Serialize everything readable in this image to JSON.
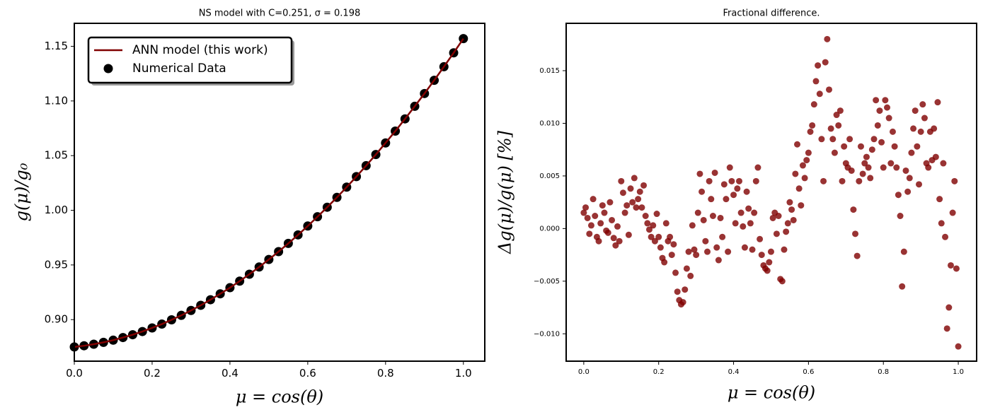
{
  "chart_data": [
    {
      "type": "line",
      "title": "NS model with C=0.251, σ = 0.198",
      "xlabel": "μ = cos(θ)",
      "ylabel": "g(μ)/g₀",
      "x": [
        0,
        0.025,
        0.05,
        0.075,
        0.1,
        0.125,
        0.15,
        0.175,
        0.2,
        0.225,
        0.25,
        0.275,
        0.3,
        0.325,
        0.35,
        0.375,
        0.4,
        0.425,
        0.45,
        0.475,
        0.5,
        0.525,
        0.55,
        0.575,
        0.6,
        0.625,
        0.65,
        0.675,
        0.7,
        0.725,
        0.75,
        0.775,
        0.8,
        0.825,
        0.85,
        0.875,
        0.9,
        0.925,
        0.95,
        0.975,
        1.0
      ],
      "series": [
        {
          "name": "ANN model (this work)",
          "color": "#800000",
          "style": "line",
          "values": [
            0.875,
            0.8761,
            0.8775,
            0.8792,
            0.8812,
            0.8836,
            0.8862,
            0.8891,
            0.8924,
            0.8959,
            0.8998,
            0.9039,
            0.9084,
            0.9131,
            0.9182,
            0.9236,
            0.9292,
            0.9352,
            0.9415,
            0.9481,
            0.955,
            0.9622,
            0.9697,
            0.9775,
            0.9856,
            0.9941,
            1.0028,
            1.0118,
            1.0212,
            1.0308,
            1.0408,
            1.051,
            1.0616,
            1.0724,
            1.0836,
            1.0951,
            1.1068,
            1.1189,
            1.1313,
            1.144,
            1.157
          ]
        },
        {
          "name": "Numerical Data",
          "color": "#000000",
          "style": "scatter",
          "values": [
            0.875,
            0.8761,
            0.8775,
            0.8792,
            0.8812,
            0.8836,
            0.8862,
            0.8891,
            0.8924,
            0.8959,
            0.8998,
            0.9039,
            0.9084,
            0.9131,
            0.9182,
            0.9236,
            0.9292,
            0.9352,
            0.9415,
            0.9481,
            0.955,
            0.9622,
            0.9697,
            0.9775,
            0.9856,
            0.9941,
            1.0028,
            1.0118,
            1.0212,
            1.0308,
            1.0408,
            1.051,
            1.0616,
            1.0724,
            1.0836,
            1.0951,
            1.1068,
            1.1189,
            1.1313,
            1.144,
            1.157
          ]
        }
      ],
      "xlim": [
        0,
        1.055
      ],
      "ylim": [
        0.862,
        1.171
      ],
      "xticks": [
        {
          "value": 0,
          "label": "0.0"
        },
        0.2,
        0.4,
        0.6,
        0.8,
        {
          "value": 1,
          "label": "1.0"
        }
      ],
      "yticks": [
        {
          "value": 0.9,
          "label": "0.90"
        },
        0.95,
        {
          "value": 1,
          "label": "1.00"
        },
        1.05,
        {
          "value": 1.1,
          "label": "1.10"
        },
        1.15
      ],
      "legend": "upper left"
    },
    {
      "type": "scatter",
      "title": "Fractional difference.",
      "xlabel": "μ = cos(θ)",
      "ylabel": "Δg(μ)/g(μ)  [%]",
      "x": [
        0,
        0.005,
        0.01,
        0.015,
        0.02,
        0.025,
        0.03,
        0.035,
        0.04,
        0.045,
        0.05,
        0.055,
        0.06,
        0.065,
        0.07,
        0.075,
        0.08,
        0.085,
        0.09,
        0.095,
        0.1,
        0.105,
        0.11,
        0.115,
        0.12,
        0.125,
        0.13,
        0.135,
        0.14,
        0.145,
        0.15,
        0.155,
        0.16,
        0.165,
        0.17,
        0.175,
        0.18,
        0.185,
        0.19,
        0.195,
        0.2,
        0.205,
        0.21,
        0.215,
        0.22,
        0.225,
        0.23,
        0.235,
        0.24,
        0.245,
        0.25,
        0.255,
        0.26,
        0.265,
        0.27,
        0.275,
        0.28,
        0.285,
        0.29,
        0.295,
        0.3,
        0.305,
        0.31,
        0.315,
        0.32,
        0.325,
        0.33,
        0.335,
        0.34,
        0.345,
        0.35,
        0.355,
        0.36,
        0.365,
        0.37,
        0.375,
        0.38,
        0.385,
        0.39,
        0.395,
        0.4,
        0.405,
        0.41,
        0.415,
        0.42,
        0.425,
        0.43,
        0.435,
        0.44,
        0.445,
        0.45,
        0.455,
        0.46,
        0.465,
        0.47,
        0.475,
        0.48,
        0.485,
        0.49,
        0.495,
        0.5,
        0.505,
        0.51,
        0.515,
        0.52,
        0.525,
        0.53,
        0.535,
        0.54,
        0.545,
        0.55,
        0.555,
        0.56,
        0.565,
        0.57,
        0.575,
        0.58,
        0.585,
        0.59,
        0.595,
        0.6,
        0.605,
        0.61,
        0.615,
        0.62,
        0.625,
        0.63,
        0.635,
        0.64,
        0.645,
        0.65,
        0.655,
        0.66,
        0.665,
        0.67,
        0.675,
        0.68,
        0.685,
        0.69,
        0.695,
        0.7,
        0.705,
        0.71,
        0.715,
        0.72,
        0.725,
        0.73,
        0.735,
        0.74,
        0.745,
        0.75,
        0.755,
        0.76,
        0.765,
        0.77,
        0.775,
        0.78,
        0.785,
        0.79,
        0.795,
        0.8,
        0.805,
        0.81,
        0.815,
        0.82,
        0.825,
        0.83,
        0.835,
        0.84,
        0.845,
        0.85,
        0.855,
        0.86,
        0.865,
        0.87,
        0.875,
        0.88,
        0.885,
        0.89,
        0.895,
        0.9,
        0.905,
        0.91,
        0.915,
        0.92,
        0.925,
        0.93,
        0.935,
        0.94,
        0.945,
        0.95,
        0.955,
        0.96,
        0.965,
        0.97,
        0.975,
        0.98,
        0.985,
        0.99,
        0.995,
        1.0
      ],
      "series": [
        {
          "color": "#800000",
          "alpha": 0.8,
          "values": [
            0.0015,
            0.002,
            0.001,
            -0.0005,
            0.0003,
            0.0028,
            0.0012,
            -0.0008,
            -0.0012,
            0.0005,
            0.0022,
            0.0015,
            -0.0002,
            -0.0004,
            0.0025,
            0.0008,
            -0.0009,
            -0.0016,
            0.0002,
            -0.0012,
            0.0045,
            0.0034,
            0.0015,
            0.0022,
            -0.0006,
            0.0038,
            0.0025,
            0.0048,
            0.002,
            0.0028,
            0.0035,
            0.002,
            0.0041,
            0.0012,
            0.0005,
            -0.0001,
            -0.0008,
            0.0003,
            -0.0012,
            0.0014,
            -0.0008,
            -0.0018,
            -0.0028,
            -0.0032,
            0.0005,
            -0.0012,
            -0.0008,
            -0.0025,
            -0.0015,
            -0.0042,
            -0.006,
            -0.0068,
            -0.0072,
            -0.007,
            -0.0058,
            -0.0038,
            -0.0022,
            -0.0045,
            0.0003,
            -0.002,
            -0.0025,
            0.0015,
            0.0052,
            0.0035,
            0.0008,
            -0.0012,
            -0.0022,
            0.0045,
            0.0028,
            0.0012,
            0.0053,
            -0.0018,
            -0.003,
            0.001,
            -0.0008,
            0.0042,
            0.0028,
            -0.0022,
            0.0058,
            0.0045,
            0.0032,
            0.0005,
            0.0038,
            0.0045,
            0.0015,
            0.0002,
            -0.0018,
            0.0035,
            0.0019,
            0.0005,
            -0.002,
            0.0015,
            0.0045,
            0.0058,
            -0.001,
            -0.0025,
            -0.0035,
            -0.0038,
            -0.004,
            -0.0032,
            -0.0022,
            0.001,
            0.0015,
            -0.0005,
            0.0012,
            -0.0048,
            -0.005,
            -0.002,
            -0.0003,
            0.0005,
            0.0025,
            0.0018,
            0.0008,
            0.0052,
            0.008,
            0.0038,
            0.0022,
            0.006,
            0.0048,
            0.0065,
            0.0072,
            0.0092,
            0.0098,
            0.0118,
            0.014,
            0.0155,
            0.0128,
            0.0085,
            0.0045,
            0.0158,
            0.018,
            0.0132,
            0.0095,
            0.0085,
            0.0072,
            0.0108,
            0.0098,
            0.0112,
            0.0045,
            0.0078,
            0.0062,
            0.0058,
            0.0085,
            0.0055,
            0.0018,
            -0.0005,
            -0.0026,
            0.0045,
            0.0078,
            0.0052,
            0.0062,
            0.0068,
            0.0058,
            0.0048,
            0.0075,
            0.0085,
            0.0122,
            0.0098,
            0.0112,
            0.0082,
            0.0058,
            0.0122,
            0.0115,
            0.0105,
            0.0062,
            0.0092,
            0.0078,
            0.0058,
            0.0032,
            0.0012,
            -0.0055,
            -0.0022,
            0.0055,
            0.0035,
            0.0048,
            0.0072,
            0.0095,
            0.0112,
            0.0078,
            0.0042,
            0.0092,
            0.0118,
            0.0105,
            0.0062,
            0.0058,
            0.0092,
            0.0065,
            0.0095,
            0.0068,
            0.012,
            0.0028,
            0.0005,
            0.0062,
            -0.0008,
            -0.0095,
            -0.0075,
            -0.0035,
            0.0015,
            0.0045,
            -0.0038,
            -0.0112
          ]
        }
      ],
      "xlim": [
        -0.047,
        1.049
      ],
      "ylim": [
        -0.0126,
        0.0195
      ],
      "xticks": [
        {
          "value": 0,
          "label": "0.0"
        },
        0.2,
        0.4,
        0.6,
        0.8,
        {
          "value": 1,
          "label": "1.0"
        }
      ],
      "yticks": [
        {
          "value": -0.01,
          "label": "−0.010"
        },
        {
          "value": -0.005,
          "label": "−0.005"
        },
        {
          "value": 0,
          "label": "0.000"
        },
        0.005,
        {
          "value": 0.01,
          "label": "0.010"
        },
        0.015
      ]
    }
  ]
}
